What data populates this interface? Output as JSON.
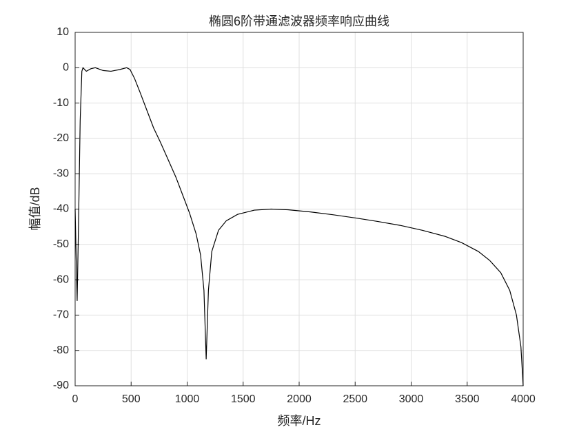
{
  "chart_data": {
    "type": "line",
    "title": "椭圆6阶带通滤波器频率响应曲线",
    "x_label": "频率/Hz",
    "y_label": "幅值/dB",
    "grid": true,
    "xlim": [
      0,
      4000
    ],
    "xticks": [
      0,
      500,
      1000,
      1500,
      2000,
      2500,
      3000,
      3500,
      4000
    ],
    "ylim": [
      -90,
      10
    ],
    "yticks": [
      10,
      0,
      -10,
      -20,
      -30,
      -40,
      -50,
      -60,
      -70,
      -80,
      -90
    ],
    "series": [
      {
        "color": "#000000",
        "x": [
          0,
          10,
          18,
          30,
          45,
          60,
          70,
          100,
          140,
          180,
          250,
          320,
          400,
          460,
          490,
          530,
          580,
          640,
          700,
          760,
          830,
          900,
          960,
          1020,
          1080,
          1120,
          1150,
          1170,
          1190,
          1220,
          1280,
          1350,
          1450,
          1600,
          1750,
          1900,
          2100,
          2300,
          2500,
          2700,
          2900,
          3100,
          3300,
          3450,
          3600,
          3700,
          3800,
          3880,
          3940,
          3980,
          4000
        ],
        "values": [
          -40,
          -55,
          -66,
          -45,
          -15,
          -1,
          0,
          -1,
          -0.3,
          0,
          -0.8,
          -1,
          -0.5,
          0,
          -0.5,
          -3,
          -7,
          -12,
          -17,
          -21,
          -26,
          -31,
          -36,
          -41,
          -47,
          -53,
          -63,
          -82.5,
          -63,
          -52,
          -46,
          -43.3,
          -41.5,
          -40.3,
          -40,
          -40.2,
          -40.8,
          -41.6,
          -42.5,
          -43.5,
          -44.6,
          -46,
          -47.7,
          -49.5,
          -52,
          -54.5,
          -58,
          -63,
          -70,
          -79,
          -90
        ]
      }
    ]
  }
}
